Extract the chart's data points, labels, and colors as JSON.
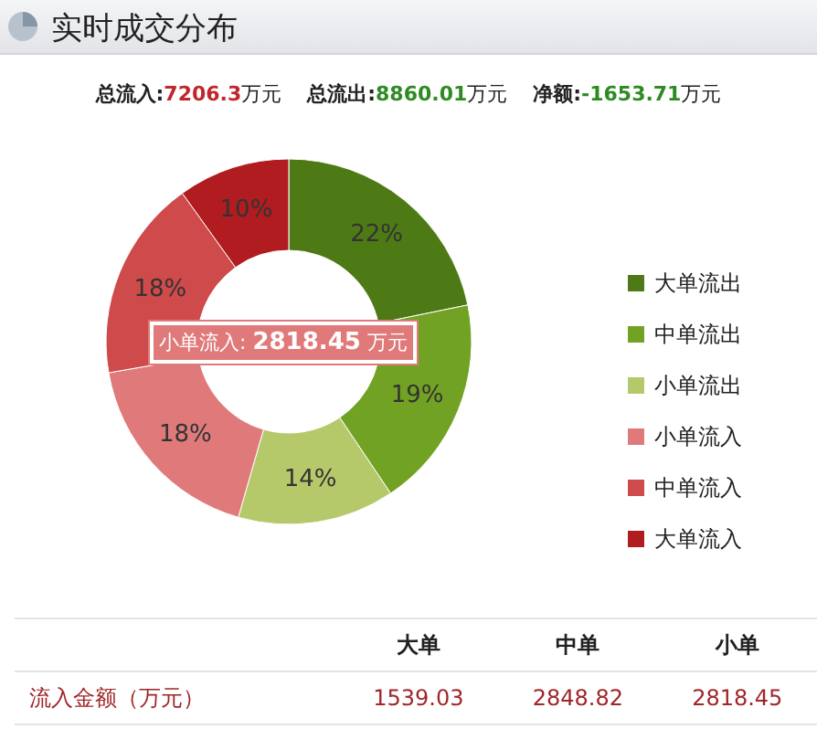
{
  "chart_data": [
    {
      "type": "donut",
      "title": "实时成交分布",
      "categories": [
        "大单流出",
        "中单流出",
        "小单流出",
        "小单流入",
        "中单流入",
        "大单流入"
      ],
      "values": [
        22,
        19,
        14,
        18,
        18,
        10
      ],
      "value_labels": [
        "22%",
        "19%",
        "14%",
        "18%",
        "18%",
        "10%"
      ],
      "colors": [
        "#4e7a16",
        "#72a224",
        "#b6c96a",
        "#e07a7a",
        "#cf4a4a",
        "#b01c1f"
      ],
      "legend": "right",
      "annotations": [
        "总流入:7206.3万元",
        "总流出:8860.01万元",
        "净额:-1653.71万元",
        "小单流入: 2818.45 万元"
      ]
    },
    {
      "type": "other",
      "categories": [
        "大单",
        "中单",
        "小单"
      ],
      "ylabel": "流入金额（万元）",
      "values": [
        1539.03,
        2848.82,
        2818.45
      ],
      "data_labels": true
    }
  ]
}
